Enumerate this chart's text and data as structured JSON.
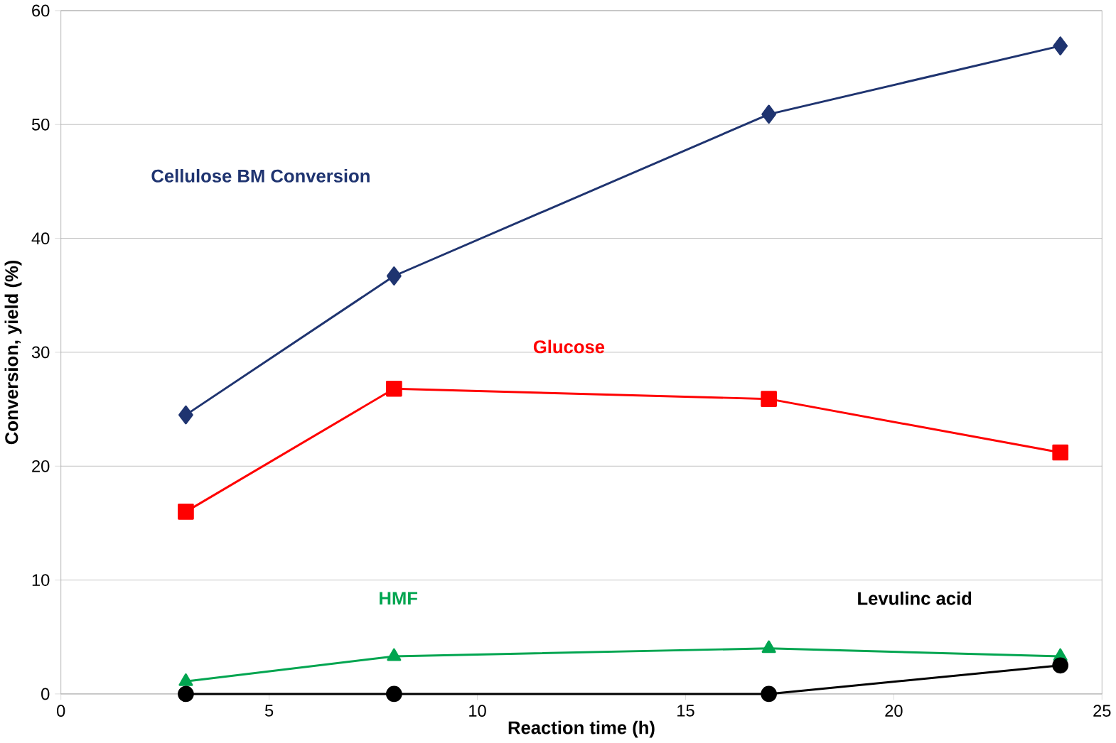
{
  "chart_data": {
    "type": "line",
    "xlabel": "Reaction time (h)",
    "ylabel": "Conversion, yield (%)",
    "xlim": [
      0,
      25
    ],
    "xticks": [
      0,
      5,
      10,
      15,
      20,
      25
    ],
    "ylim": [
      0,
      60
    ],
    "yticks": [
      0,
      10,
      20,
      30,
      40,
      50,
      60
    ],
    "grid": "y",
    "line_style": "solid",
    "series": [
      {
        "name": "Cellulose BM Conversion",
        "color": "#1f3470",
        "marker": "diamond",
        "x": [
          3,
          8,
          17,
          24
        ],
        "values": [
          24.5,
          36.7,
          50.9,
          56.9
        ]
      },
      {
        "name": "Glucose",
        "color": "#ff0000",
        "marker": "square",
        "x": [
          3,
          8,
          17,
          24
        ],
        "values": [
          16.0,
          26.8,
          25.9,
          21.2
        ]
      },
      {
        "name": "HMF",
        "color": "#00a550",
        "marker": "triangle",
        "x": [
          3,
          8,
          17,
          24
        ],
        "values": [
          1.1,
          3.3,
          4.0,
          3.3
        ]
      },
      {
        "name": "Levulinc acid",
        "color": "#000000",
        "marker": "circle",
        "x": [
          3,
          8,
          17,
          24
        ],
        "values": [
          0,
          0,
          0,
          2.5
        ]
      }
    ]
  }
}
